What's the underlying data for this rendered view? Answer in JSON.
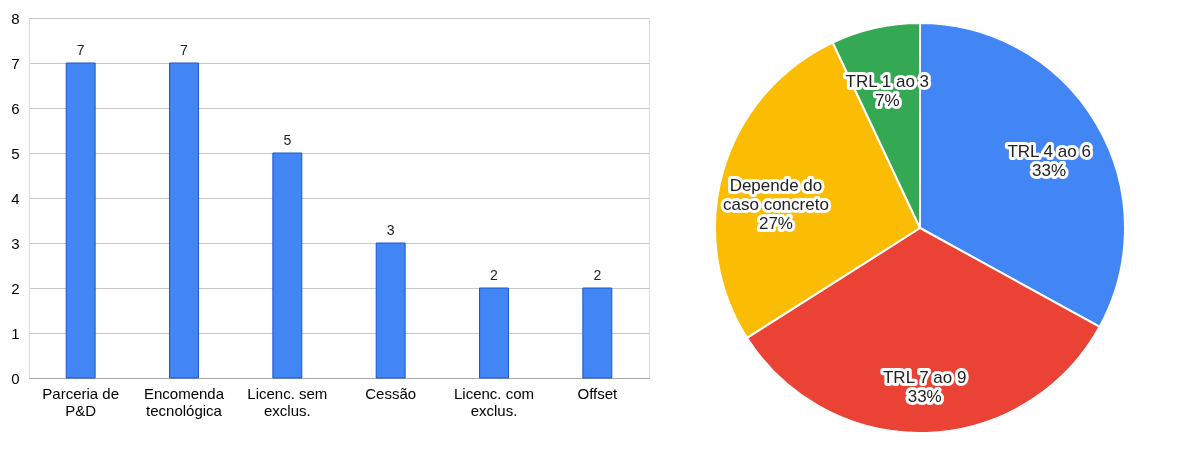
{
  "chart_data": [
    {
      "type": "bar",
      "categories": [
        "Parceria de P&D",
        "Encomenda tecnológica",
        "Licenc. sem exclus.",
        "Cessão",
        "Licenc. com exclus.",
        "Offset"
      ],
      "values": [
        7,
        7,
        5,
        3,
        2,
        2
      ],
      "color": "#4285f4",
      "ylim": [
        0,
        8
      ],
      "yticks": [
        0,
        1,
        2,
        3,
        4,
        5,
        6,
        7,
        8
      ],
      "grid": "y",
      "data_labels": true
    },
    {
      "type": "pie",
      "categories": [
        "TRL 4 ao 6",
        "TRL 7 ao 9",
        "Depende do caso concreto",
        "TRL 1 ao 3"
      ],
      "values": [
        33,
        33,
        27,
        7
      ],
      "value_labels": [
        "33%",
        "33%",
        "27%",
        "7%"
      ],
      "colors": [
        "#4285f4",
        "#ea4335",
        "#fbbc04",
        "#34a853"
      ]
    }
  ]
}
